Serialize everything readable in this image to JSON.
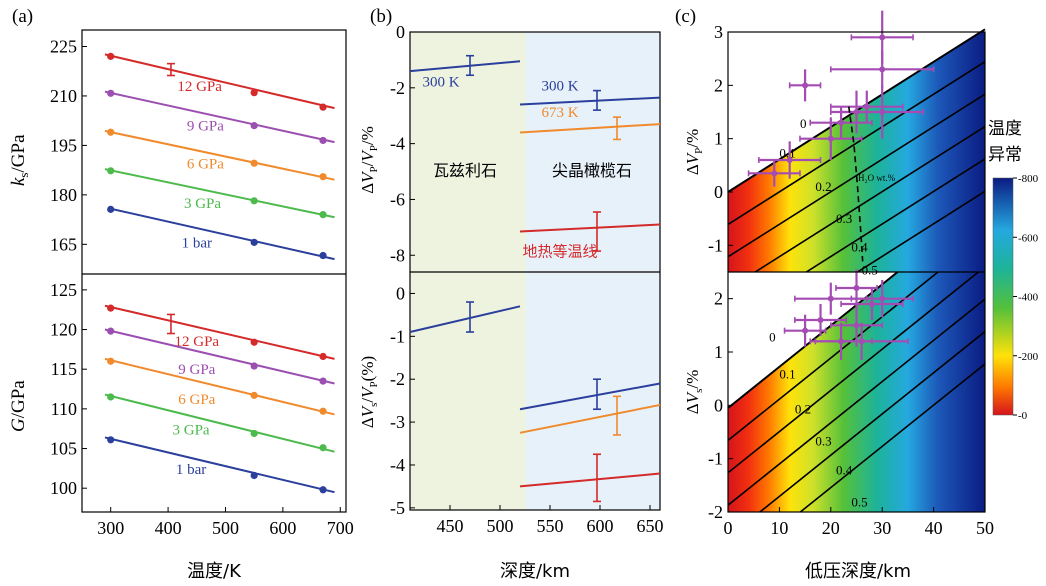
{
  "panels": {
    "a": "(a)",
    "b": "(b)",
    "c": "(c)"
  },
  "colors": {
    "1bar": "#2b3f9c",
    "3GPa": "#4cba4c",
    "6GPa": "#f08a2c",
    "9GPa": "#9b4fb0",
    "12GPa": "#d42a2a",
    "wadsleyite_bg": "#eef3e0",
    "ringwoodite_bg": "#e7f1fa"
  },
  "chart_data": [
    {
      "id": "a-top",
      "type": "line",
      "xlabel": "温度/K",
      "ylabel": "k_s/GPa",
      "xlim": [
        250,
        710
      ],
      "ylim": [
        156,
        230
      ],
      "xticks": [
        300,
        400,
        500,
        600,
        700
      ],
      "yticks": [
        165,
        180,
        195,
        210,
        225
      ],
      "series": [
        {
          "name": "1 bar",
          "color": "#2b3f9c",
          "line": [
            [
              300,
              175.8
            ],
            [
              690,
              160.5
            ]
          ],
          "points": [
            [
              300,
              175.6
            ],
            [
              550,
              165.6
            ],
            [
              670,
              161.6
            ]
          ]
        },
        {
          "name": "3 GPa",
          "color": "#4cba4c",
          "line": [
            [
              290,
              187.8
            ],
            [
              690,
              173.2
            ]
          ],
          "points": [
            [
              300,
              187.3
            ],
            [
              550,
              178.2
            ],
            [
              670,
              174.0
            ]
          ]
        },
        {
          "name": "6 GPa",
          "color": "#f08a2c",
          "line": [
            [
              290,
              199.4
            ],
            [
              690,
              184.6
            ]
          ],
          "points": [
            [
              300,
              199.0
            ],
            [
              550,
              189.6
            ],
            [
              670,
              185.5
            ]
          ]
        },
        {
          "name": "9 GPa",
          "color": "#9b4fb0",
          "line": [
            [
              290,
              211.3
            ],
            [
              690,
              196.0
            ]
          ],
          "points": [
            [
              300,
              210.8
            ],
            [
              550,
              201.0
            ],
            [
              670,
              196.5
            ]
          ]
        },
        {
          "name": "12 GPa",
          "color": "#d42a2a",
          "line": [
            [
              290,
              222.6
            ],
            [
              690,
              206.3
            ]
          ],
          "points": [
            [
              300,
              222.0
            ],
            [
              550,
              211.0
            ],
            [
              670,
              206.6
            ]
          ],
          "errorbar": {
            "x": 405,
            "y": 218.0,
            "err": 1.8
          }
        }
      ]
    },
    {
      "id": "a-bottom",
      "type": "line",
      "xlabel": "温度/K",
      "ylabel": "G/GPa",
      "xlim": [
        250,
        710
      ],
      "ylim": [
        97,
        127
      ],
      "xticks": [
        300,
        400,
        500,
        600,
        700
      ],
      "yticks": [
        100,
        105,
        110,
        115,
        120,
        125
      ],
      "series": [
        {
          "name": "1 bar",
          "color": "#2b3f9c",
          "line": [
            [
              290,
              106.4
            ],
            [
              690,
              99.5
            ]
          ],
          "points": [
            [
              300,
              106.1
            ],
            [
              550,
              101.6
            ],
            [
              670,
              99.8
            ]
          ]
        },
        {
          "name": "3 GPa",
          "color": "#4cba4c",
          "line": [
            [
              290,
              111.8
            ],
            [
              690,
              104.6
            ]
          ],
          "points": [
            [
              300,
              111.5
            ],
            [
              550,
              106.9
            ],
            [
              670,
              105.1
            ]
          ]
        },
        {
          "name": "6 GPa",
          "color": "#f08a2c",
          "line": [
            [
              290,
              116.3
            ],
            [
              690,
              109.3
            ]
          ],
          "points": [
            [
              300,
              116.0
            ],
            [
              550,
              111.7
            ],
            [
              670,
              109.7
            ]
          ]
        },
        {
          "name": "9 GPa",
          "color": "#9b4fb0",
          "line": [
            [
              290,
              120.0
            ],
            [
              690,
              113.2
            ]
          ],
          "points": [
            [
              300,
              119.8
            ],
            [
              550,
              115.4
            ],
            [
              670,
              113.5
            ]
          ]
        },
        {
          "name": "12 GPa",
          "color": "#d42a2a",
          "line": [
            [
              290,
              123.0
            ],
            [
              690,
              116.3
            ]
          ],
          "points": [
            [
              300,
              122.7
            ],
            [
              550,
              118.4
            ],
            [
              670,
              116.6
            ]
          ],
          "errorbar": {
            "x": 405,
            "y": 120.7,
            "err": 1.2
          }
        }
      ]
    },
    {
      "id": "b-top",
      "type": "line",
      "xlabel": "深度/km",
      "ylabel": "ΔV_P/V_P/%",
      "xlim": [
        410,
        660
      ],
      "ylim": [
        -8.6,
        0
      ],
      "xticks": [
        450,
        500,
        550,
        600,
        650
      ],
      "yticks": [
        0,
        -2,
        -4,
        -6,
        -8
      ],
      "regions": [
        {
          "label": "瓦兹利石",
          "from": 410,
          "to": 520
        },
        {
          "label": "尖晶橄榄石",
          "from": 520,
          "to": 660
        }
      ],
      "series": [
        {
          "name": "300 K",
          "color": "#2b3f9c",
          "line": [
            [
              410,
              -1.4
            ],
            [
              520,
              -1.05
            ]
          ],
          "errorbar": {
            "x": 470,
            "y": -1.2,
            "err": 0.35
          }
        },
        {
          "name": "300 K",
          "color": "#2b3f9c",
          "line": [
            [
              520,
              -2.6
            ],
            [
              660,
              -2.35
            ]
          ],
          "errorbar": {
            "x": 597,
            "y": -2.45,
            "err": 0.35
          }
        },
        {
          "name": "673 K",
          "color": "#f08a2c",
          "line": [
            [
              520,
              -3.6
            ],
            [
              660,
              -3.3
            ]
          ],
          "errorbar": {
            "x": 617,
            "y": -3.45,
            "err": 0.4
          }
        },
        {
          "name": "地热等温线",
          "color": "#d42a2a",
          "line": [
            [
              520,
              -7.15
            ],
            [
              660,
              -6.9
            ]
          ],
          "errorbar": {
            "x": 597,
            "y": -7.15,
            "err": 0.7
          }
        }
      ]
    },
    {
      "id": "b-bottom",
      "type": "line",
      "xlabel": "深度/km",
      "ylabel": "ΔV_S/V_P(%)",
      "xlim": [
        410,
        660
      ],
      "ylim": [
        -5.05,
        0.5
      ],
      "xticks": [
        450,
        500,
        550,
        600,
        650
      ],
      "yticks": [
        0,
        -1,
        -2,
        -3,
        -4,
        -5
      ],
      "series": [
        {
          "name": "300 K",
          "color": "#2b3f9c",
          "line": [
            [
              410,
              -0.9
            ],
            [
              520,
              -0.3
            ]
          ],
          "errorbar": {
            "x": 470,
            "y": -0.55,
            "err": 0.35
          }
        },
        {
          "name": "300 K",
          "color": "#2b3f9c",
          "line": [
            [
              520,
              -2.7
            ],
            [
              660,
              -2.1
            ]
          ],
          "errorbar": {
            "x": 597,
            "y": -2.35,
            "err": 0.35
          }
        },
        {
          "name": "673 K",
          "color": "#f08a2c",
          "line": [
            [
              520,
              -3.25
            ],
            [
              660,
              -2.6
            ]
          ],
          "errorbar": {
            "x": 617,
            "y": -2.85,
            "err": 0.45
          }
        },
        {
          "name": "地热等温线",
          "color": "#d42a2a",
          "line": [
            [
              520,
              -4.5
            ],
            [
              660,
              -4.2
            ]
          ],
          "errorbar": {
            "x": 597,
            "y": -4.3,
            "err": 0.55
          }
        }
      ]
    },
    {
      "id": "c-top",
      "type": "heatmap",
      "xlabel": "低压深度/km",
      "ylabel": "ΔV_P/%",
      "xlim": [
        0,
        50
      ],
      "ylim": [
        -1.5,
        3
      ],
      "xticks": [
        0,
        10,
        20,
        30,
        40,
        50
      ],
      "yticks": [
        3,
        2,
        1,
        0,
        -1
      ],
      "boundary": [
        [
          0,
          0
        ],
        [
          50,
          3.05
        ]
      ],
      "water_contours": [
        {
          "label": "0",
          "at": [
            14,
            1.2
          ]
        },
        {
          "label": "0.1",
          "at": [
            10,
            0.65
          ]
        },
        {
          "label": "0.2",
          "at": [
            17,
            0.02
          ]
        },
        {
          "label": "0.3",
          "at": [
            21,
            -0.58
          ]
        },
        {
          "label": "0.4",
          "at": [
            24,
            -1.12
          ]
        },
        {
          "label": "0.5",
          "at": [
            26,
            -1.55
          ]
        }
      ],
      "water_label": "H₂O wt.%",
      "observations": [
        {
          "x": 9,
          "y": 0.35,
          "xerr": 5,
          "yerr": 0.25
        },
        {
          "x": 12,
          "y": 0.6,
          "xerr": 6,
          "yerr": 0.35
        },
        {
          "x": 15,
          "y": 2.0,
          "xerr": 3,
          "yerr": 0.3
        },
        {
          "x": 20,
          "y": 1.0,
          "xerr": 6,
          "yerr": 0.4
        },
        {
          "x": 22,
          "y": 1.3,
          "xerr": 6,
          "yerr": 0.3
        },
        {
          "x": 25,
          "y": 1.5,
          "xerr": 5,
          "yerr": 0.4
        },
        {
          "x": 27,
          "y": 1.6,
          "xerr": 7,
          "yerr": 0.3
        },
        {
          "x": 30,
          "y": 2.9,
          "xerr": 6,
          "yerr": 0.5
        },
        {
          "x": 30,
          "y": 2.3,
          "xerr": 10,
          "yerr": 0.35
        },
        {
          "x": 30,
          "y": 1.5,
          "xerr": 8,
          "yerr": 0.5
        }
      ]
    },
    {
      "id": "c-bottom",
      "type": "heatmap",
      "xlabel": "低压深度/km",
      "ylabel": "ΔV_S/%",
      "xlim": [
        0,
        50
      ],
      "ylim": [
        -2,
        2.5
      ],
      "xticks": [
        0,
        10,
        20,
        30,
        40,
        50
      ],
      "yticks": [
        2,
        1,
        0,
        -1,
        -2
      ],
      "boundary": [
        [
          0,
          -0.05
        ],
        [
          33,
          2.5
        ]
      ],
      "water_contours": [
        {
          "label": "0",
          "at": [
            8,
            1.2
          ]
        },
        {
          "label": "0.1",
          "at": [
            10,
            0.5
          ]
        },
        {
          "label": "0.2",
          "at": [
            13,
            -0.15
          ]
        },
        {
          "label": "0.3",
          "at": [
            17,
            -0.75
          ]
        },
        {
          "label": "0.4",
          "at": [
            21,
            -1.3
          ]
        },
        {
          "label": "0.5",
          "at": [
            24,
            -1.9
          ]
        }
      ],
      "observations": [
        {
          "x": 15,
          "y": 1.4,
          "xerr": 4,
          "yerr": 0.3
        },
        {
          "x": 18,
          "y": 1.6,
          "xerr": 5,
          "yerr": 0.3
        },
        {
          "x": 20,
          "y": 2.0,
          "xerr": 7,
          "yerr": 0.3
        },
        {
          "x": 22,
          "y": 1.2,
          "xerr": 6,
          "yerr": 0.35
        },
        {
          "x": 25,
          "y": 1.5,
          "xerr": 5,
          "yerr": 0.4
        },
        {
          "x": 25,
          "y": 2.2,
          "xerr": 4,
          "yerr": 0.35
        },
        {
          "x": 26,
          "y": 1.2,
          "xerr": 9,
          "yerr": 0.35
        },
        {
          "x": 28,
          "y": 1.9,
          "xerr": 6,
          "yerr": 0.3
        },
        {
          "x": 30,
          "y": 2.0,
          "xerr": 6,
          "yerr": 0.35
        }
      ]
    }
  ],
  "colorbar": {
    "title_line1": "温度",
    "title_line2": "异常",
    "ticks": [
      "800",
      "600",
      "400",
      "200",
      "0"
    ],
    "range": [
      0,
      800
    ]
  }
}
